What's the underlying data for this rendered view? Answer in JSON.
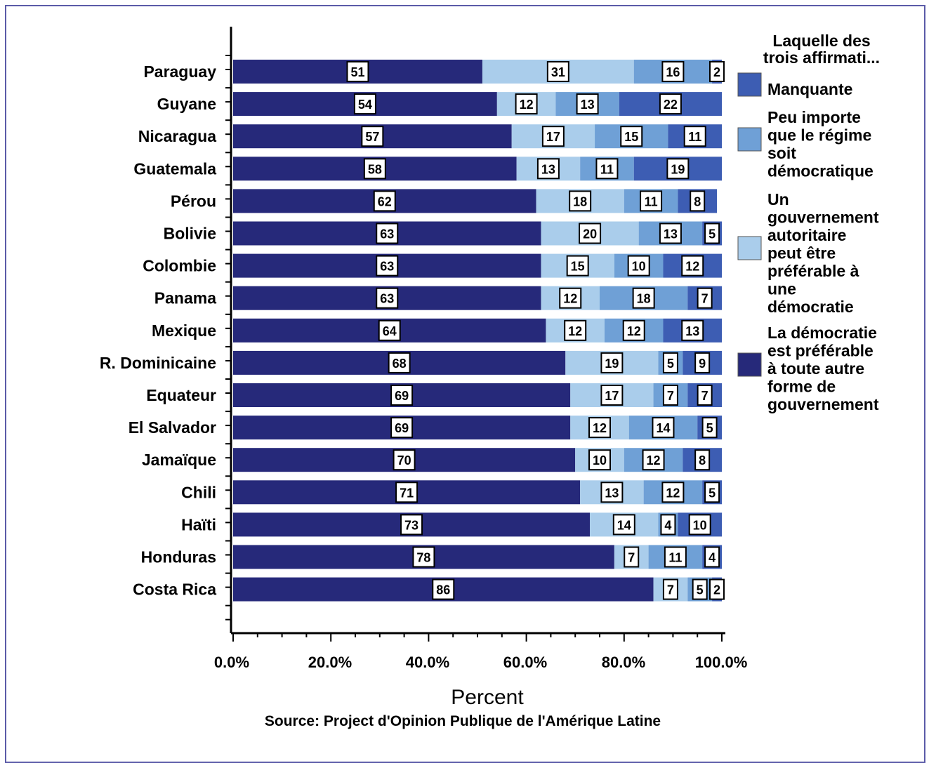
{
  "colors": {
    "manquante": "#3d5db3",
    "peu_importe": "#6fa0d6",
    "autoritaire": "#aacdeb",
    "democratie": "#26297a",
    "frame": "#5b5ba8",
    "text": "#000000"
  },
  "chart_data": {
    "type": "bar",
    "orientation": "horizontal",
    "stacked": true,
    "xlabel": "Percent",
    "source": "Source: Project d'Opinion Publique de l'Amérique Latine",
    "legend_title": [
      "Laquelle  des",
      "trois affirmati..."
    ],
    "legend_placement": "right",
    "x_ticks": [
      "0.0%",
      "20.0%",
      "40.0%",
      "60.0%",
      "80.0%",
      "100.0%"
    ],
    "xlim": [
      0,
      100
    ],
    "categories": [
      "Paraguay",
      "Guyane",
      "Nicaragua",
      "Guatemala",
      "Pérou",
      "Bolivie",
      "Colombie",
      "Panama",
      "Mexique",
      "R. Dominicaine",
      "Equateur",
      "El Salvador",
      "Jamaïque",
      "Chili",
      "Haïti",
      "Honduras",
      "Costa Rica"
    ],
    "series": [
      {
        "name": [
          "La démocratie",
          "est préférable",
          "à toute autre",
          "forme de",
          "gouvernement"
        ],
        "color_key": "democratie",
        "values": [
          51,
          54,
          57,
          58,
          62,
          63,
          63,
          63,
          64,
          68,
          69,
          69,
          70,
          71,
          73,
          78,
          86
        ]
      },
      {
        "name": [
          "Un",
          "gouvernement",
          "autoritaire",
          "peut être",
          "préférable à",
          "une",
          "démocratie"
        ],
        "color_key": "autoritaire",
        "values": [
          31,
          12,
          17,
          13,
          18,
          20,
          15,
          12,
          12,
          19,
          17,
          12,
          10,
          13,
          14,
          7,
          7
        ]
      },
      {
        "name": [
          "Peu importe",
          "que le régime",
          "soit",
          "démocratique"
        ],
        "color_key": "peu_importe",
        "values": [
          16,
          13,
          15,
          11,
          11,
          13,
          10,
          18,
          12,
          5,
          7,
          14,
          12,
          12,
          4,
          11,
          5
        ]
      },
      {
        "name": [
          "Manquante"
        ],
        "color_key": "manquante",
        "values": [
          2,
          22,
          11,
          19,
          8,
          5,
          12,
          7,
          13,
          9,
          7,
          5,
          8,
          5,
          10,
          4,
          2
        ]
      }
    ],
    "legend_order": [
      "manquante",
      "peu_importe",
      "autoritaire",
      "democratie"
    ]
  }
}
